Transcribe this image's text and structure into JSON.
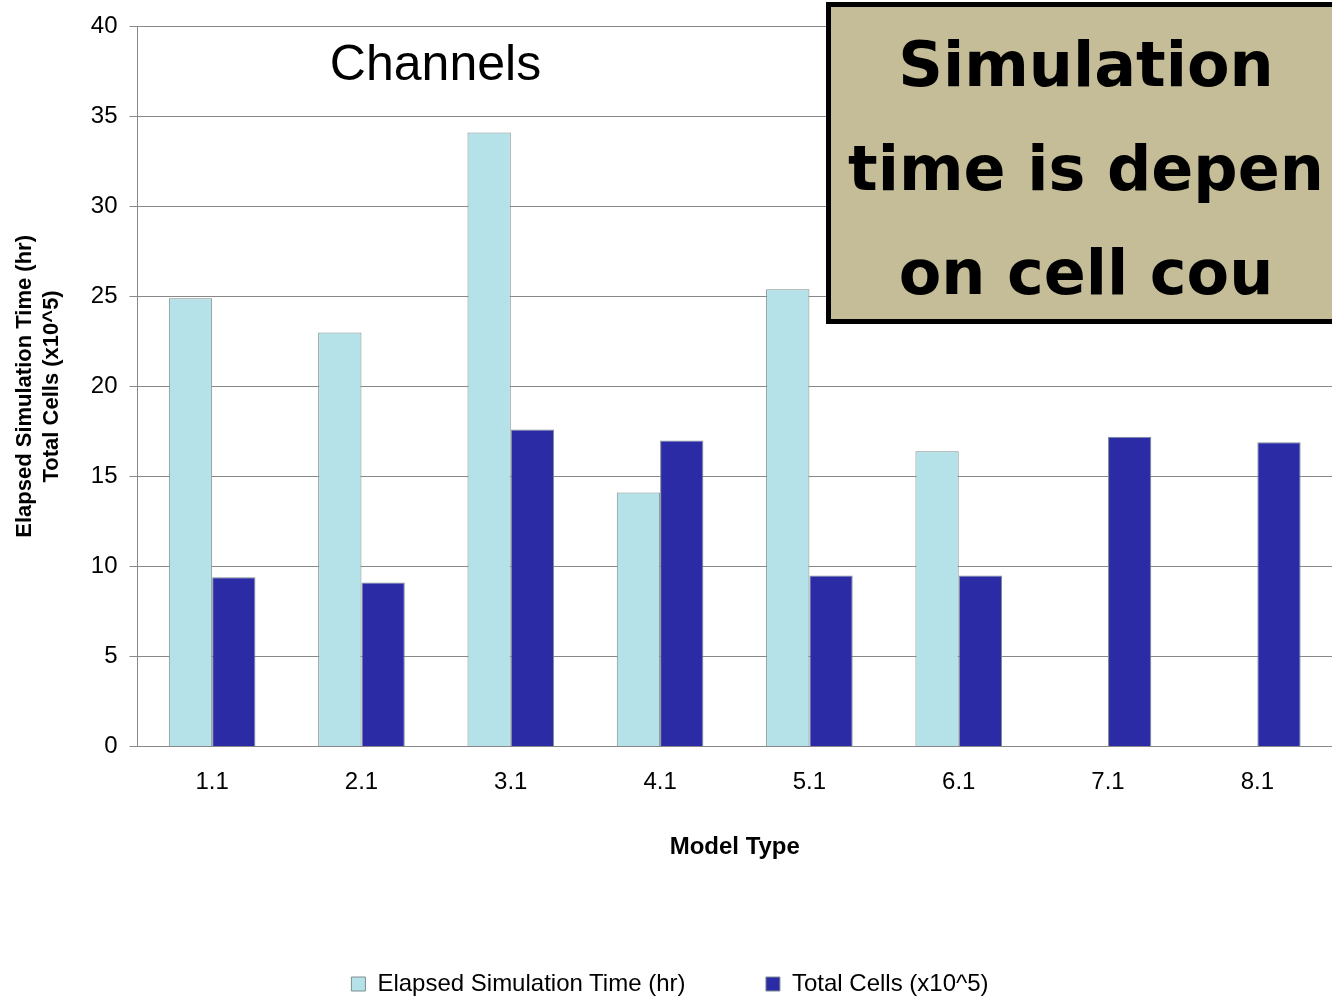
{
  "chart_data": {
    "type": "bar",
    "xlabel": "Model Type",
    "ylabel": "Elapsed Simulation Time (hr)\nTotal Cells (x10^5)",
    "categories": [
      "1.1",
      "2.1",
      "3.1",
      "4.1",
      "5.1",
      "6.1",
      "7.1",
      "8.1"
    ],
    "series": [
      {
        "name": "Elapsed Simulation Time (hr)",
        "color": "#b4e2e8",
        "values": [
          24.9,
          23.0,
          34.1,
          14.1,
          25.4,
          16.4,
          null,
          null
        ]
      },
      {
        "name": "Total Cells (x10^5)",
        "color": "#2b2ba6",
        "values": [
          9.4,
          9.1,
          17.6,
          17.0,
          9.5,
          9.5,
          17.2,
          16.9
        ]
      }
    ],
    "ylim": [
      0,
      40
    ],
    "yticks": [
      0,
      5,
      10,
      15,
      20,
      25,
      30,
      35,
      40
    ],
    "grid": "y",
    "legend": "bottom",
    "annotations": [
      "Channels",
      "Simulation time is depen on cell cou"
    ]
  }
}
